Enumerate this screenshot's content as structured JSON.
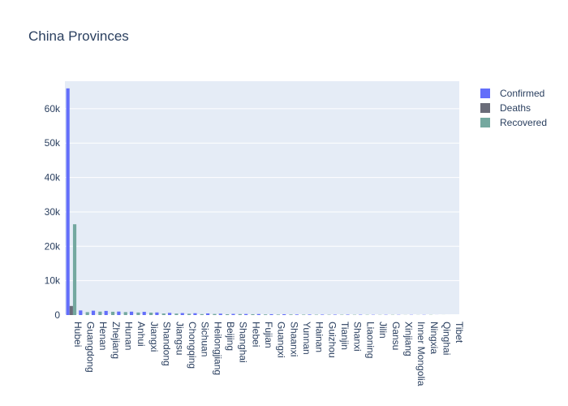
{
  "chart_data": {
    "type": "bar",
    "title": "China Provinces",
    "xlabel": "",
    "ylabel": "",
    "ylim": [
      0,
      68000
    ],
    "y_ticks": [
      0,
      10000,
      20000,
      30000,
      40000,
      50000,
      60000
    ],
    "y_tick_labels": [
      "0",
      "10k",
      "20k",
      "30k",
      "40k",
      "50k",
      "60k"
    ],
    "grid": true,
    "legend_position": "top-right",
    "categories": [
      "Hubei",
      "Guangdong",
      "Henan",
      "Zhejiang",
      "Hunan",
      "Anhui",
      "Jiangxi",
      "Shandong",
      "Jiangsu",
      "Chongqing",
      "Sichuan",
      "Heilongjiang",
      "Beijing",
      "Shanghai",
      "Hebei",
      "Fujian",
      "Guangxi",
      "Shaanxi",
      "Yunnan",
      "Hainan",
      "Guizhou",
      "Tianjin",
      "Shanxi",
      "Liaoning",
      "Jilin",
      "Gansu",
      "Xinjiang",
      "Inner Mongolia",
      "Ningxia",
      "Qinghai",
      "Tibet"
    ],
    "series": [
      {
        "name": "Confirmed",
        "color": "#636efa",
        "values": [
          65914,
          1345,
          1271,
          1205,
          1016,
          989,
          934,
          756,
          631,
          576,
          531,
          480,
          399,
          335,
          311,
          296,
          251,
          245,
          174,
          168,
          146,
          135,
          133,
          121,
          93,
          91,
          76,
          75,
          71,
          18,
          1
        ]
      },
      {
        "name": "Deaths",
        "color": "#6a6c79",
        "values": [
          2641,
          7,
          19,
          1,
          4,
          6,
          1,
          6,
          0,
          6,
          3,
          12,
          4,
          3,
          6,
          1,
          2,
          1,
          2,
          4,
          2,
          3,
          0,
          1,
          1,
          2,
          3,
          0,
          0,
          0,
          0
        ]
      },
      {
        "name": "Recovered",
        "color": "#74a89f",
        "values": [
          26403,
          851,
          1000,
          956,
          864,
          741,
          700,
          450,
          430,
          380,
          280,
          320,
          240,
          290,
          250,
          195,
          160,
          180,
          140,
          120,
          110,
          110,
          95,
          85,
          70,
          80,
          40,
          40,
          60,
          15,
          1
        ]
      }
    ]
  }
}
